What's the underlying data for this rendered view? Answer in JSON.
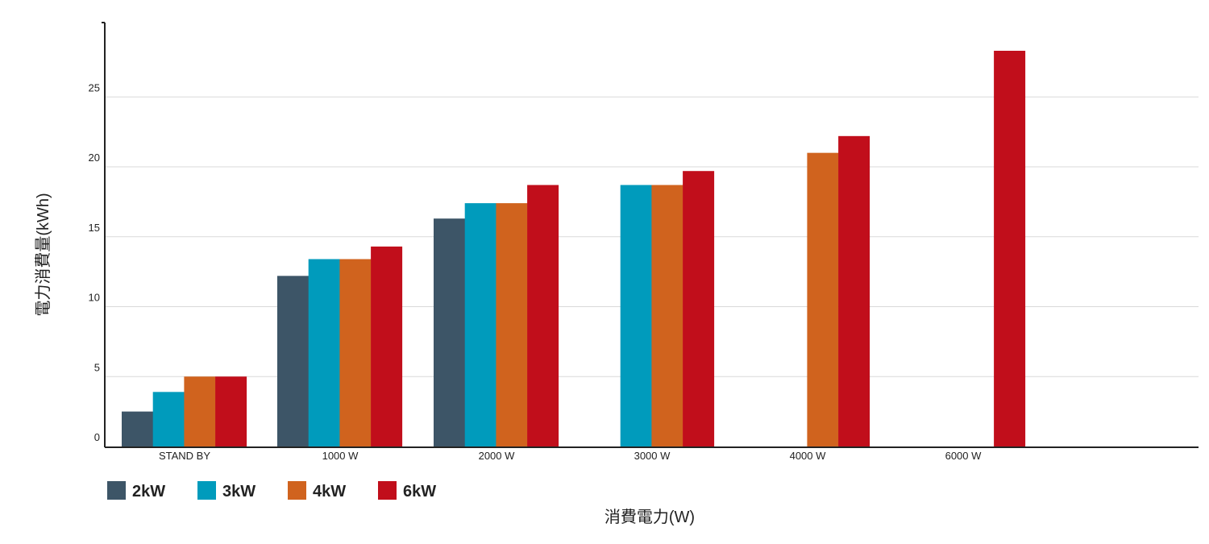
{
  "chart_data": {
    "type": "bar",
    "title": "",
    "xlabel": "消費電力(W)",
    "ylabel": "電力消費量(kWh)",
    "ylim": [
      0,
      30
    ],
    "yticks": [
      0,
      5,
      10,
      15,
      20,
      25
    ],
    "grid": true,
    "legend_position": "bottom-left",
    "categories": [
      "STAND BY",
      "1000 W",
      "2000 W",
      "3000 W",
      "4000 W",
      "6000 W"
    ],
    "series": [
      {
        "name": "2kW",
        "color": "#3d5567",
        "values": [
          2.5,
          12.2,
          16.3,
          null,
          null,
          null
        ]
      },
      {
        "name": "3kW",
        "color": "#009bbc",
        "values": [
          3.9,
          13.4,
          17.4,
          18.7,
          null,
          null
        ]
      },
      {
        "name": "4kW",
        "color": "#d0631e",
        "values": [
          5.0,
          13.4,
          17.4,
          18.7,
          21.0,
          null
        ]
      },
      {
        "name": "6kW",
        "color": "#c10e1b",
        "values": [
          5.0,
          14.3,
          18.7,
          19.7,
          22.2,
          28.3
        ]
      }
    ]
  }
}
